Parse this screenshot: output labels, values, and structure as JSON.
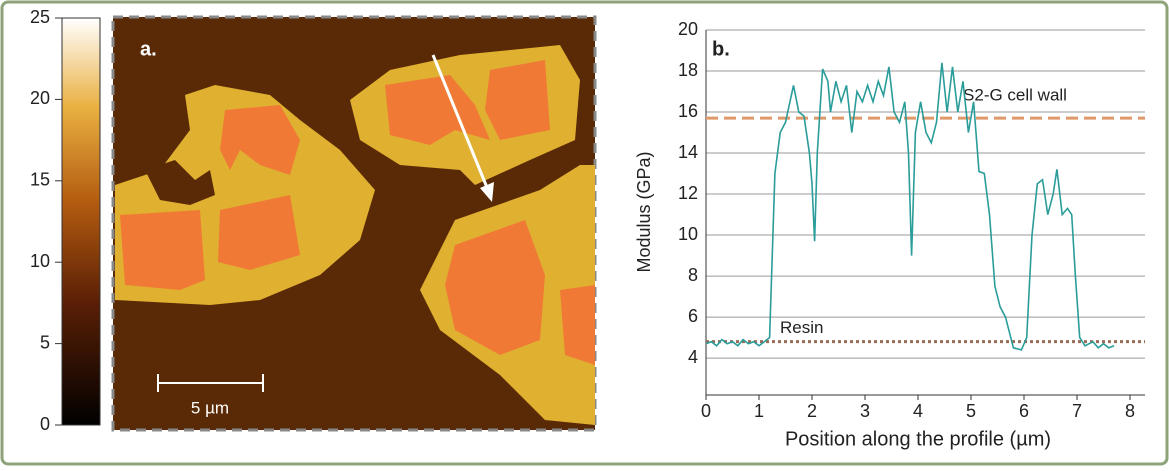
{
  "chart_data": [
    {
      "type": "image",
      "panel_label": "a.",
      "scale_bar_label": "5 µm",
      "colorbar_lim": [
        0,
        25
      ],
      "colorbar_ticks": [
        0,
        5,
        10,
        15,
        20,
        25
      ]
    },
    {
      "type": "line",
      "panel_label": "b.",
      "x_label": "Position along the profile (µm)",
      "y_label": "Modulus (GPa)",
      "xlim": [
        0,
        8
      ],
      "ylim": [
        2.2,
        20
      ],
      "xticks": [
        0,
        1,
        2,
        3,
        4,
        5,
        6,
        7,
        8
      ],
      "yticks": [
        4,
        6,
        8,
        10,
        12,
        14,
        16,
        18,
        20
      ],
      "grid": true,
      "color": "#2a9d9a",
      "x": [
        0,
        0.1,
        0.2,
        0.3,
        0.4,
        0.5,
        0.6,
        0.7,
        0.8,
        0.9,
        1.0,
        1.1,
        1.2,
        1.3,
        1.4,
        1.5,
        1.65,
        1.75,
        1.85,
        1.95,
        2.0,
        2.05,
        2.1,
        2.2,
        2.3,
        2.35,
        2.45,
        2.55,
        2.65,
        2.75,
        2.85,
        2.95,
        3.05,
        3.15,
        3.25,
        3.35,
        3.45,
        3.55,
        3.65,
        3.75,
        3.82,
        3.88,
        3.95,
        4.05,
        4.15,
        4.25,
        4.35,
        4.45,
        4.55,
        4.65,
        4.75,
        4.85,
        4.95,
        5.05,
        5.15,
        5.25,
        5.35,
        5.45,
        5.55,
        5.65,
        5.8,
        5.95,
        6.05,
        6.15,
        6.25,
        6.35,
        6.45,
        6.55,
        6.62,
        6.72,
        6.82,
        6.9,
        6.97,
        7.05,
        7.15,
        7.3,
        7.4,
        7.5,
        7.6,
        7.7
      ],
      "values": [
        4.7,
        4.8,
        4.6,
        4.9,
        4.7,
        4.8,
        4.6,
        4.9,
        4.7,
        4.8,
        4.6,
        4.8,
        5.0,
        13,
        15,
        15.5,
        17.3,
        16,
        15.8,
        14,
        12.5,
        9.7,
        14,
        18.1,
        17.5,
        16,
        17.5,
        16.5,
        17.3,
        15,
        17,
        16.5,
        17.3,
        16.5,
        17.5,
        16.8,
        18.2,
        16,
        15.5,
        16.5,
        14,
        9,
        15,
        16.5,
        15,
        14.5,
        15.5,
        18.4,
        16,
        18.2,
        16,
        17.5,
        15,
        16.5,
        13.1,
        13,
        11,
        7.5,
        6.5,
        6,
        4.5,
        4.4,
        5,
        10,
        12.5,
        12.7,
        11,
        12,
        13.2,
        11,
        11.3,
        11,
        8,
        5,
        4.6,
        4.8,
        4.5,
        4.7,
        4.5,
        4.6
      ],
      "reference_lines": [
        {
          "label": "S2-G cell wall",
          "value": 15.7,
          "color": "#e0996a",
          "style": "dashed"
        },
        {
          "label": "Resin",
          "value": 4.8,
          "color": "#9b6b5a",
          "style": "dotted"
        }
      ]
    }
  ]
}
